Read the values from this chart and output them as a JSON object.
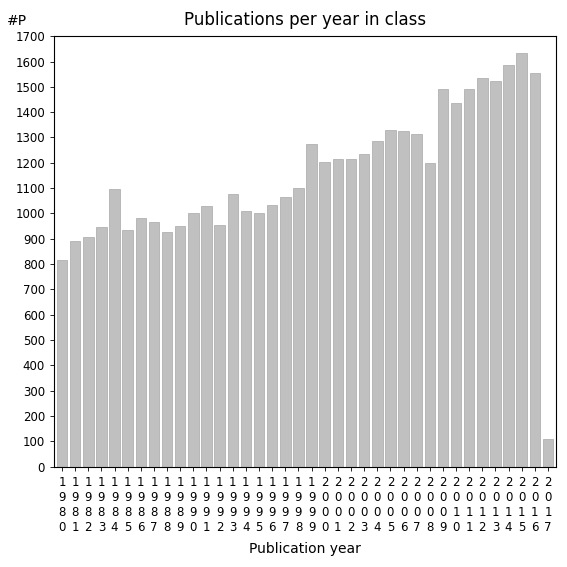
{
  "title": "Publications per year in class",
  "xlabel": "Publication year",
  "ylabel": "#P",
  "years": [
    "1980",
    "1981",
    "1982",
    "1983",
    "1984",
    "1985",
    "1986",
    "1987",
    "1988",
    "1989",
    "1990",
    "1991",
    "1992",
    "1993",
    "1994",
    "1995",
    "1996",
    "1997",
    "1998",
    "1999",
    "2000",
    "2001",
    "2002",
    "2003",
    "2004",
    "2005",
    "2006",
    "2007",
    "2008",
    "2009",
    "2010",
    "2011",
    "2012",
    "2013",
    "2014",
    "2015",
    "2016",
    "2017"
  ],
  "values": [
    815,
    890,
    905,
    945,
    1095,
    935,
    980,
    965,
    925,
    950,
    1000,
    1030,
    955,
    1075,
    1010,
    1000,
    1035,
    1065,
    1100,
    1275,
    1205,
    1215,
    1215,
    1235,
    1285,
    1330,
    1325,
    1315,
    1200,
    1490,
    1435,
    1490,
    1535,
    1525,
    1585,
    1635,
    1555,
    110
  ],
  "bar_color": "#c0c0c0",
  "bar_edge_color": "#a8a8a8",
  "ylim": [
    0,
    1700
  ],
  "yticks": [
    0,
    100,
    200,
    300,
    400,
    500,
    600,
    700,
    800,
    900,
    1000,
    1100,
    1200,
    1300,
    1400,
    1500,
    1600,
    1700
  ],
  "background_color": "#ffffff",
  "title_fontsize": 12,
  "axis_label_fontsize": 10,
  "tick_fontsize": 8.5
}
